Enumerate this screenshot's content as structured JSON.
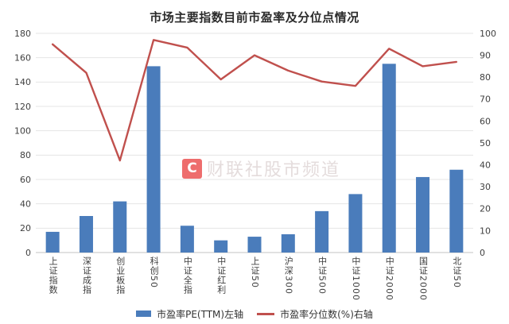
{
  "chart_data": {
    "type": "bar",
    "title": "市场主要指数目前市盈率及分位点情况",
    "categories": [
      "上证指数",
      "深证成指",
      "创业板指",
      "科创50",
      "中证全指",
      "中证红利",
      "上证50",
      "沪深300",
      "中证500",
      "中证1000",
      "中证2000",
      "国证2000",
      "北证50"
    ],
    "series": [
      {
        "name": "市盈率PE(TTM)",
        "legend": "市盈率PE(TTM)左轴",
        "type": "bar",
        "axis": "left",
        "color": "#4A7CBB",
        "values": [
          17,
          30,
          42,
          153,
          22,
          10,
          13,
          15,
          34,
          48,
          155,
          62,
          68
        ]
      },
      {
        "name": "市盈率分位数(%)",
        "legend": "市盈率分位数(%)右轴",
        "type": "line",
        "axis": "right",
        "color": "#C0504D",
        "values": [
          95,
          82,
          42,
          97,
          93.5,
          79,
          90,
          83,
          78,
          76,
          93,
          85,
          87
        ]
      }
    ],
    "left_axis": {
      "min": 0,
      "max": 180,
      "ticks": [
        0,
        20,
        40,
        60,
        80,
        100,
        120,
        140,
        160,
        180
      ]
    },
    "right_axis": {
      "min": 0,
      "max": 100,
      "ticks": [
        0,
        10,
        20,
        30,
        40,
        50,
        60,
        70,
        80,
        90,
        100
      ]
    },
    "grid": true,
    "legend_position": "bottom"
  },
  "watermark": {
    "logo": "C",
    "text": "财联社股市频道"
  },
  "colors": {
    "bar": "#4A7CBB",
    "line": "#C0504D",
    "grid": "#e4e4e4",
    "baseline": "#c3c3c3",
    "watermark_red": "#ec5a5a"
  }
}
